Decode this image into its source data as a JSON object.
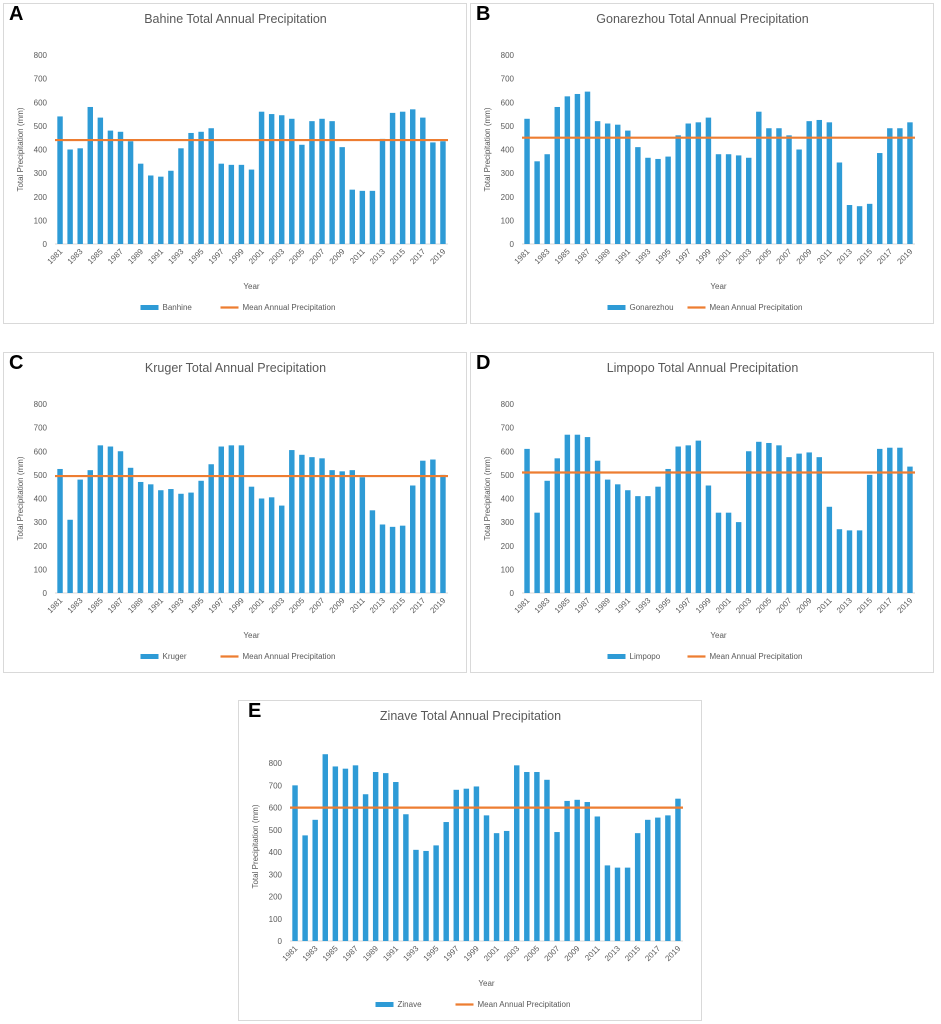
{
  "chart_data": [
    {
      "type": "bar",
      "panel": "A",
      "title": "Bahine Total Annual Precipitation",
      "x_label": "Year",
      "y_label": "Total Precipitation (mm)",
      "categories": [
        "1981",
        null,
        "1983",
        null,
        "1985",
        null,
        "1987",
        null,
        "1989",
        null,
        "1991",
        null,
        "1993",
        null,
        "1995",
        null,
        "1997",
        null,
        "1999",
        null,
        "2001",
        null,
        "2003",
        null,
        "2005",
        null,
        "2007",
        null,
        "2009",
        null,
        "2011",
        null,
        "2013",
        null,
        "2015",
        null,
        "2017",
        null,
        "2019"
      ],
      "series": [
        {
          "name": "Banhine",
          "color": "#2e9bd6",
          "values": [
            540,
            400,
            405,
            580,
            535,
            480,
            475,
            435,
            340,
            290,
            285,
            310,
            405,
            470,
            475,
            490,
            340,
            335,
            335,
            315,
            560,
            550,
            545,
            530,
            420,
            520,
            530,
            520,
            410,
            230,
            225,
            225,
            445,
            555,
            560,
            570,
            535,
            430,
            435
          ]
        }
      ],
      "mean_line": {
        "name": "Mean Annual Precipitation",
        "color": "#ed7d31",
        "value": 440
      },
      "ylim": [
        0,
        800
      ],
      "yticks": [
        0,
        100,
        200,
        300,
        400,
        500,
        600,
        700,
        800
      ]
    },
    {
      "type": "bar",
      "panel": "B",
      "title": "Gonarezhou Total Annual Precipitation",
      "x_label": "Year",
      "y_label": "Total Precipitation (mm)",
      "categories": [
        "1981",
        null,
        "1983",
        null,
        "1985",
        null,
        "1987",
        null,
        "1989",
        null,
        "1991",
        null,
        "1993",
        null,
        "1995",
        null,
        "1997",
        null,
        "1999",
        null,
        "2001",
        null,
        "2003",
        null,
        "2005",
        null,
        "2007",
        null,
        "2009",
        null,
        "2011",
        null,
        "2013",
        null,
        "2015",
        null,
        "2017",
        null,
        "2019"
      ],
      "series": [
        {
          "name": "Gonarezhou",
          "color": "#2e9bd6",
          "values": [
            530,
            350,
            380,
            580,
            625,
            635,
            645,
            520,
            510,
            505,
            480,
            410,
            365,
            360,
            370,
            460,
            510,
            515,
            535,
            380,
            380,
            375,
            365,
            560,
            490,
            490,
            460,
            400,
            520,
            525,
            515,
            345,
            165,
            160,
            170,
            385,
            490,
            490,
            515
          ]
        }
      ],
      "mean_line": {
        "name": "Mean Annual Precipitation",
        "color": "#ed7d31",
        "value": 450
      },
      "ylim": [
        0,
        800
      ],
      "yticks": [
        0,
        100,
        200,
        300,
        400,
        500,
        600,
        700,
        800
      ]
    },
    {
      "type": "bar",
      "panel": "C",
      "title": "Kruger Total Annual Precipitation",
      "x_label": "Year",
      "y_label": "Total Precipitation (mm)",
      "categories": [
        "1981",
        null,
        "1983",
        null,
        "1985",
        null,
        "1987",
        null,
        "1989",
        null,
        "1991",
        null,
        "1993",
        null,
        "1995",
        null,
        "1997",
        null,
        "1999",
        null,
        "2001",
        null,
        "2003",
        null,
        "2005",
        null,
        "2007",
        null,
        "2009",
        null,
        "2011",
        null,
        "2013",
        null,
        "2015",
        null,
        "2017",
        null,
        "2019"
      ],
      "series": [
        {
          "name": "Kruger",
          "color": "#2e9bd6",
          "values": [
            525,
            310,
            480,
            520,
            625,
            620,
            600,
            530,
            470,
            460,
            435,
            440,
            420,
            425,
            475,
            545,
            620,
            625,
            625,
            450,
            400,
            405,
            370,
            605,
            585,
            575,
            570,
            520,
            515,
            520,
            490,
            350,
            290,
            280,
            285,
            455,
            560,
            565,
            500
          ]
        }
      ],
      "mean_line": {
        "name": "Mean Annual Precipitation",
        "color": "#ed7d31",
        "value": 495
      },
      "ylim": [
        0,
        800
      ],
      "yticks": [
        0,
        100,
        200,
        300,
        400,
        500,
        600,
        700,
        800
      ]
    },
    {
      "type": "bar",
      "panel": "D",
      "title": "Limpopo Total Annual Precipitation",
      "x_label": "Year",
      "y_label": "Total Precipitation (mm)",
      "categories": [
        "1981",
        null,
        "1983",
        null,
        "1985",
        null,
        "1987",
        null,
        "1989",
        null,
        "1991",
        null,
        "1993",
        null,
        "1995",
        null,
        "1997",
        null,
        "1999",
        null,
        "2001",
        null,
        "2003",
        null,
        "2005",
        null,
        "2007",
        null,
        "2009",
        null,
        "2011",
        null,
        "2013",
        null,
        "2015",
        null,
        "2017",
        null,
        "2019"
      ],
      "series": [
        {
          "name": "Limpopo",
          "color": "#2e9bd6",
          "values": [
            610,
            340,
            475,
            570,
            670,
            670,
            660,
            560,
            480,
            460,
            435,
            410,
            410,
            450,
            525,
            620,
            625,
            645,
            455,
            340,
            340,
            300,
            600,
            640,
            635,
            625,
            575,
            590,
            595,
            575,
            365,
            270,
            265,
            265,
            500,
            610,
            615,
            615,
            535
          ]
        }
      ],
      "mean_line": {
        "name": "Mean Annual Precipitation",
        "color": "#ed7d31",
        "value": 510
      },
      "ylim": [
        0,
        800
      ],
      "yticks": [
        0,
        100,
        200,
        300,
        400,
        500,
        600,
        700,
        800
      ]
    },
    {
      "type": "bar",
      "panel": "E",
      "title": "Zinave Total Annual Precipitation",
      "x_label": "Year",
      "y_label": "Total Precipitation (mm)",
      "categories": [
        "1981",
        null,
        "1983",
        null,
        "1985",
        null,
        "1987",
        null,
        "1989",
        null,
        "1991",
        null,
        "1993",
        null,
        "1995",
        null,
        "1997",
        null,
        "1999",
        null,
        "2001",
        null,
        "2003",
        null,
        "2005",
        null,
        "2007",
        null,
        "2009",
        null,
        "2011",
        null,
        "2013",
        null,
        "2015",
        null,
        "2017",
        null,
        "2019"
      ],
      "series": [
        {
          "name": "Zinave",
          "color": "#2e9bd6",
          "values": [
            700,
            475,
            545,
            840,
            785,
            775,
            790,
            660,
            760,
            755,
            715,
            570,
            410,
            405,
            430,
            535,
            680,
            685,
            695,
            565,
            485,
            495,
            790,
            760,
            760,
            725,
            490,
            630,
            635,
            625,
            560,
            340,
            330,
            330,
            485,
            545,
            555,
            565,
            640
          ]
        }
      ],
      "mean_line": {
        "name": "Mean Annual Precipitation",
        "color": "#ed7d31",
        "value": 600
      },
      "ylim": [
        0,
        850
      ],
      "yticks": [
        0,
        100,
        200,
        300,
        400,
        500,
        600,
        700,
        800
      ]
    }
  ]
}
